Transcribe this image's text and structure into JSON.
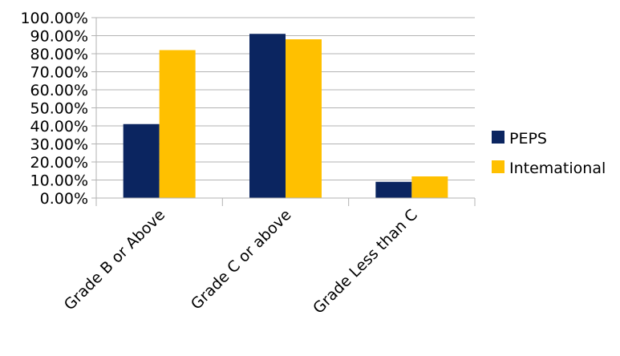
{
  "chart_data": {
    "type": "bar",
    "title": "",
    "xlabel": "",
    "ylabel": "",
    "categories": [
      "Grade B or Above",
      "Grade C or above",
      "Grade Less than C"
    ],
    "series": [
      {
        "name": "PEPS",
        "color": "#0b2560",
        "values": [
          0.41,
          0.91,
          0.09
        ]
      },
      {
        "name": "Intemational",
        "color": "#ffc000",
        "values": [
          0.82,
          0.88,
          0.12
        ]
      }
    ],
    "ylim": [
      0,
      1
    ],
    "yticks": [
      "0.00%",
      "10.00%",
      "20.00%",
      "30.00%",
      "40.00%",
      "50.00%",
      "60.00%",
      "70.00%",
      "80.00%",
      "90.00%",
      "100.00%"
    ],
    "grid": true,
    "legend_position": "right"
  }
}
